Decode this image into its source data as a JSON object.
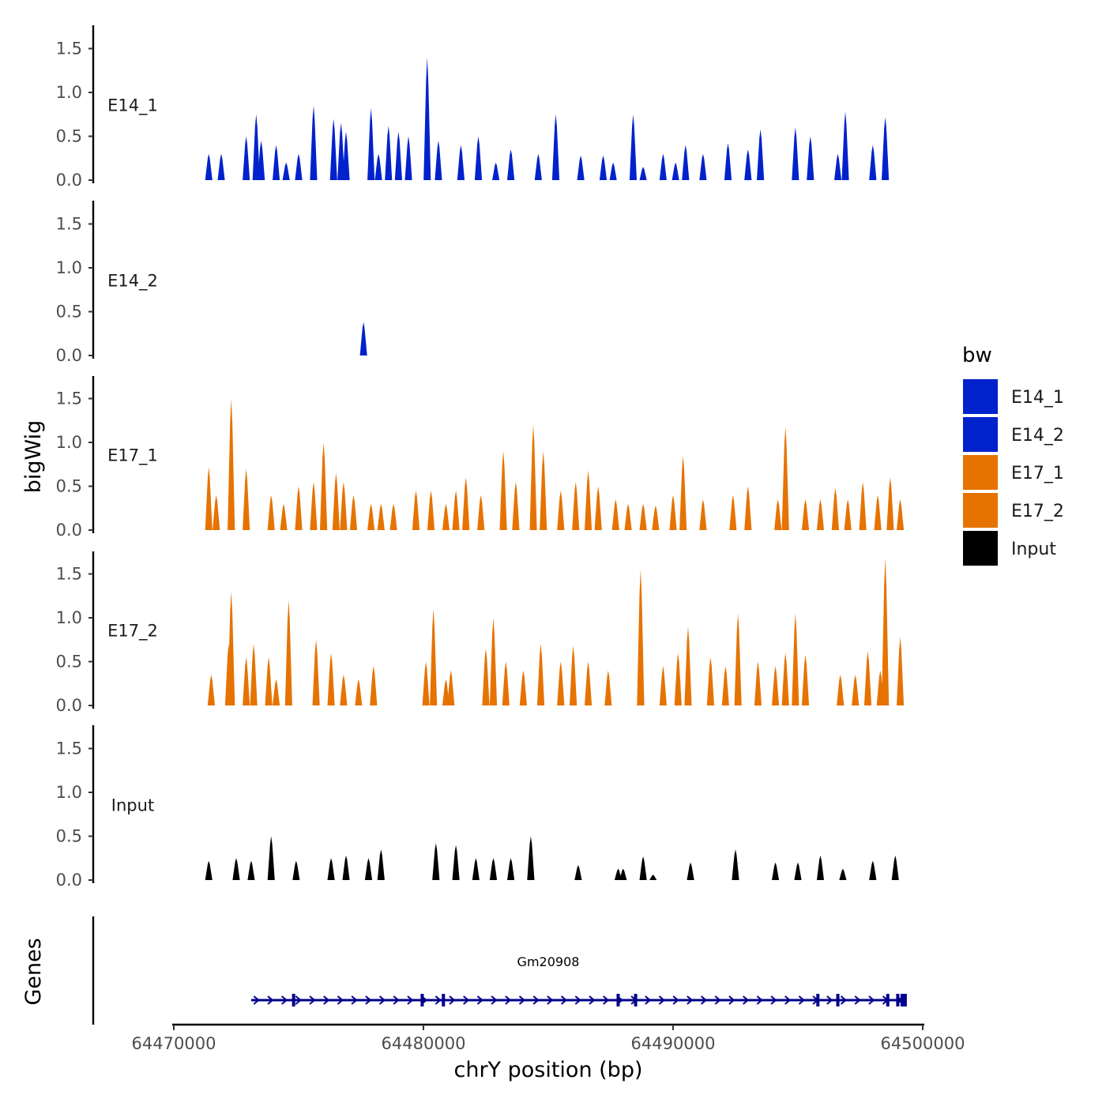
{
  "chart_data": {
    "type": "area",
    "chromosome": "chrY",
    "xlabel": "chrY position (bp)",
    "ylabel": "bigWig",
    "genes_label": "Genes",
    "xlim": [
      64470000,
      64500000
    ],
    "ylim": [
      0,
      1.75
    ],
    "x_ticks": [
      "64470000",
      "64480000",
      "64490000",
      "64500000"
    ],
    "x_tick_values": [
      64470000,
      64480000,
      64490000,
      64500000
    ],
    "y_ticks": [
      "0.0",
      "0.5",
      "1.0",
      "1.5"
    ],
    "y_tick_values": [
      0,
      0.5,
      1.0,
      1.5
    ],
    "legend": {
      "title": "bw",
      "items": [
        {
          "label": "E14_1",
          "color": "#0022CC"
        },
        {
          "label": "E14_2",
          "color": "#0022CC"
        },
        {
          "label": "E17_1",
          "color": "#E67300"
        },
        {
          "label": "E17_2",
          "color": "#E67300"
        },
        {
          "label": "Input",
          "color": "#000000"
        }
      ]
    },
    "tracks": [
      {
        "name": "E14_1",
        "color": "#0022CC",
        "peaks": [
          [
            64471400,
            0.3
          ],
          [
            64471900,
            0.3
          ],
          [
            64472900,
            0.5
          ],
          [
            64473300,
            0.75
          ],
          [
            64473500,
            0.45
          ],
          [
            64474100,
            0.4
          ],
          [
            64474500,
            0.2
          ],
          [
            64475000,
            0.3
          ],
          [
            64475600,
            0.85
          ],
          [
            64476400,
            0.7
          ],
          [
            64476700,
            0.65
          ],
          [
            64476900,
            0.55
          ],
          [
            64477900,
            0.82
          ],
          [
            64478200,
            0.3
          ],
          [
            64478600,
            0.62
          ],
          [
            64479000,
            0.55
          ],
          [
            64479400,
            0.5
          ],
          [
            64480150,
            1.4
          ],
          [
            64480600,
            0.45
          ],
          [
            64481500,
            0.4
          ],
          [
            64482200,
            0.5
          ],
          [
            64482900,
            0.2
          ],
          [
            64483500,
            0.35
          ],
          [
            64484600,
            0.3
          ],
          [
            64485300,
            0.75
          ],
          [
            64486300,
            0.28
          ],
          [
            64487200,
            0.28
          ],
          [
            64487600,
            0.2
          ],
          [
            64488400,
            0.75
          ],
          [
            64488800,
            0.15
          ],
          [
            64489600,
            0.3
          ],
          [
            64490100,
            0.2
          ],
          [
            64490500,
            0.4
          ],
          [
            64491200,
            0.3
          ],
          [
            64492200,
            0.42
          ],
          [
            64493000,
            0.35
          ],
          [
            64493500,
            0.58
          ],
          [
            64494900,
            0.6
          ],
          [
            64495500,
            0.5
          ],
          [
            64496600,
            0.3
          ],
          [
            64496900,
            0.78
          ],
          [
            64498000,
            0.4
          ],
          [
            64498500,
            0.72
          ]
        ]
      },
      {
        "name": "E14_2",
        "color": "#0022CC",
        "peaks": [
          [
            64477600,
            0.38
          ]
        ]
      },
      {
        "name": "E17_1",
        "color": "#E67300",
        "peaks": [
          [
            64471400,
            0.72
          ],
          [
            64471700,
            0.4
          ],
          [
            64472300,
            1.5
          ],
          [
            64472900,
            0.7
          ],
          [
            64473900,
            0.4
          ],
          [
            64474400,
            0.3
          ],
          [
            64475000,
            0.5
          ],
          [
            64475600,
            0.55
          ],
          [
            64476000,
            1.0
          ],
          [
            64476500,
            0.65
          ],
          [
            64476800,
            0.55
          ],
          [
            64477200,
            0.4
          ],
          [
            64477900,
            0.3
          ],
          [
            64478300,
            0.3
          ],
          [
            64478800,
            0.3
          ],
          [
            64479700,
            0.45
          ],
          [
            64480300,
            0.45
          ],
          [
            64480900,
            0.3
          ],
          [
            64481300,
            0.45
          ],
          [
            64481700,
            0.6
          ],
          [
            64482300,
            0.4
          ],
          [
            64483200,
            0.9
          ],
          [
            64483700,
            0.55
          ],
          [
            64484400,
            1.2
          ],
          [
            64484800,
            0.9
          ],
          [
            64485500,
            0.45
          ],
          [
            64486100,
            0.55
          ],
          [
            64486600,
            0.68
          ],
          [
            64487000,
            0.5
          ],
          [
            64487700,
            0.35
          ],
          [
            64488200,
            0.3
          ],
          [
            64488800,
            0.3
          ],
          [
            64489300,
            0.28
          ],
          [
            64490000,
            0.4
          ],
          [
            64490400,
            0.85
          ],
          [
            64491200,
            0.35
          ],
          [
            64492400,
            0.4
          ],
          [
            64493000,
            0.5
          ],
          [
            64494200,
            0.35
          ],
          [
            64494500,
            1.18
          ],
          [
            64495300,
            0.35
          ],
          [
            64495900,
            0.35
          ],
          [
            64496500,
            0.48
          ],
          [
            64497000,
            0.35
          ],
          [
            64497600,
            0.55
          ],
          [
            64498200,
            0.4
          ],
          [
            64498700,
            0.6
          ],
          [
            64499100,
            0.35
          ]
        ]
      },
      {
        "name": "E17_2",
        "color": "#E67300",
        "peaks": [
          [
            64471500,
            0.35
          ],
          [
            64472200,
            0.7
          ],
          [
            64472300,
            1.3
          ],
          [
            64472900,
            0.55
          ],
          [
            64473200,
            0.7
          ],
          [
            64473800,
            0.55
          ],
          [
            64474100,
            0.3
          ],
          [
            64474600,
            1.2
          ],
          [
            64475700,
            0.75
          ],
          [
            64476300,
            0.6
          ],
          [
            64476800,
            0.35
          ],
          [
            64477400,
            0.3
          ],
          [
            64478000,
            0.45
          ],
          [
            64480100,
            0.5
          ],
          [
            64480400,
            1.1
          ],
          [
            64480900,
            0.3
          ],
          [
            64481100,
            0.4
          ],
          [
            64482500,
            0.65
          ],
          [
            64482800,
            1.0
          ],
          [
            64483300,
            0.5
          ],
          [
            64484000,
            0.4
          ],
          [
            64484700,
            0.7
          ],
          [
            64485500,
            0.5
          ],
          [
            64486000,
            0.68
          ],
          [
            64486600,
            0.5
          ],
          [
            64487400,
            0.4
          ],
          [
            64488700,
            1.55
          ],
          [
            64489600,
            0.45
          ],
          [
            64490200,
            0.6
          ],
          [
            64490600,
            0.9
          ],
          [
            64491500,
            0.55
          ],
          [
            64492100,
            0.45
          ],
          [
            64492600,
            1.05
          ],
          [
            64493400,
            0.5
          ],
          [
            64494100,
            0.45
          ],
          [
            64494500,
            0.6
          ],
          [
            64494900,
            1.05
          ],
          [
            64495300,
            0.58
          ],
          [
            64496700,
            0.35
          ],
          [
            64497300,
            0.35
          ],
          [
            64497800,
            0.62
          ],
          [
            64498300,
            0.4
          ],
          [
            64498500,
            1.68
          ],
          [
            64499100,
            0.78
          ]
        ]
      },
      {
        "name": "Input",
        "color": "#000000",
        "peaks": [
          [
            64471400,
            0.22
          ],
          [
            64472500,
            0.25
          ],
          [
            64473100,
            0.22
          ],
          [
            64473900,
            0.5
          ],
          [
            64474900,
            0.22
          ],
          [
            64476300,
            0.25
          ],
          [
            64476900,
            0.28
          ],
          [
            64477800,
            0.25
          ],
          [
            64478300,
            0.35
          ],
          [
            64480500,
            0.42
          ],
          [
            64481300,
            0.4
          ],
          [
            64482100,
            0.25
          ],
          [
            64482800,
            0.25
          ],
          [
            64483500,
            0.25
          ],
          [
            64484300,
            0.5
          ],
          [
            64486200,
            0.17
          ],
          [
            64487800,
            0.13
          ],
          [
            64488000,
            0.13
          ],
          [
            64488800,
            0.27
          ],
          [
            64489200,
            0.06
          ],
          [
            64490700,
            0.2
          ],
          [
            64492500,
            0.35
          ],
          [
            64494100,
            0.2
          ],
          [
            64495000,
            0.2
          ],
          [
            64495900,
            0.28
          ],
          [
            64496800,
            0.13
          ],
          [
            64498000,
            0.22
          ],
          [
            64498900,
            0.28
          ]
        ]
      }
    ],
    "gene": {
      "name": "Gm20908",
      "start": 64473100,
      "end": 64499300,
      "strand": "+",
      "color": "#00008B"
    }
  }
}
